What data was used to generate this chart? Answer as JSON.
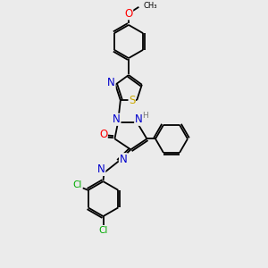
{
  "background_color": "#ebebeb",
  "bond_color": "#000000",
  "atom_colors": {
    "N": "#0000cc",
    "O": "#ff0000",
    "S": "#ccaa00",
    "Cl": "#00aa00",
    "H": "#777777",
    "C": "#000000"
  },
  "font_size": 7.5,
  "lw": 1.3
}
